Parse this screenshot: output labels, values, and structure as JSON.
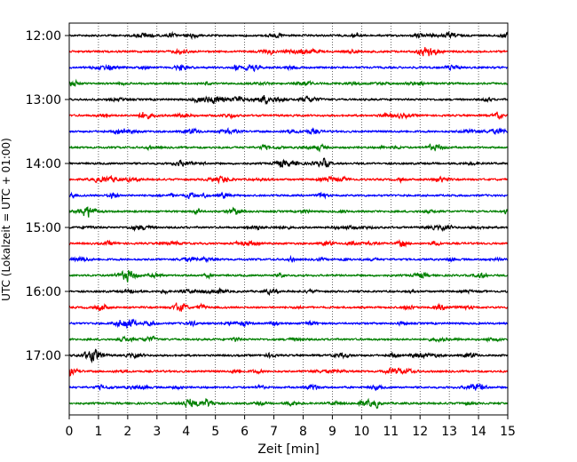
{
  "chart_data": {
    "type": "line",
    "title": "",
    "xlabel": "Zeit  [min]",
    "ylabel": "UTC (Lokalzeit = UTC + 01:00)",
    "xlim": [
      0,
      15
    ],
    "x_ticks": [
      "0",
      "1",
      "2",
      "3",
      "4",
      "5",
      "6",
      "7",
      "8",
      "9",
      "10",
      "11",
      "12",
      "13",
      "14",
      "15"
    ],
    "y_ticks": [
      "12:00",
      "13:00",
      "14:00",
      "15:00",
      "16:00",
      "17:00"
    ],
    "grid": "vertical dotted lines at each minute",
    "trace_interval_minutes": 15,
    "trace_colors": [
      "#000000",
      "#ff0000",
      "#0000ff",
      "#008000"
    ],
    "traces": [
      {
        "start": "12:00"
      },
      {
        "start": "12:15"
      },
      {
        "start": "12:30"
      },
      {
        "start": "12:45"
      },
      {
        "start": "13:00"
      },
      {
        "start": "13:15"
      },
      {
        "start": "13:30"
      },
      {
        "start": "13:45"
      },
      {
        "start": "14:00"
      },
      {
        "start": "14:15"
      },
      {
        "start": "14:30"
      },
      {
        "start": "14:45"
      },
      {
        "start": "15:00"
      },
      {
        "start": "15:15"
      },
      {
        "start": "15:30"
      },
      {
        "start": "15:45"
      },
      {
        "start": "16:00"
      },
      {
        "start": "16:15"
      },
      {
        "start": "16:30"
      },
      {
        "start": "16:45"
      },
      {
        "start": "17:00"
      },
      {
        "start": "17:15"
      },
      {
        "start": "17:30"
      },
      {
        "start": "17:45"
      }
    ]
  }
}
